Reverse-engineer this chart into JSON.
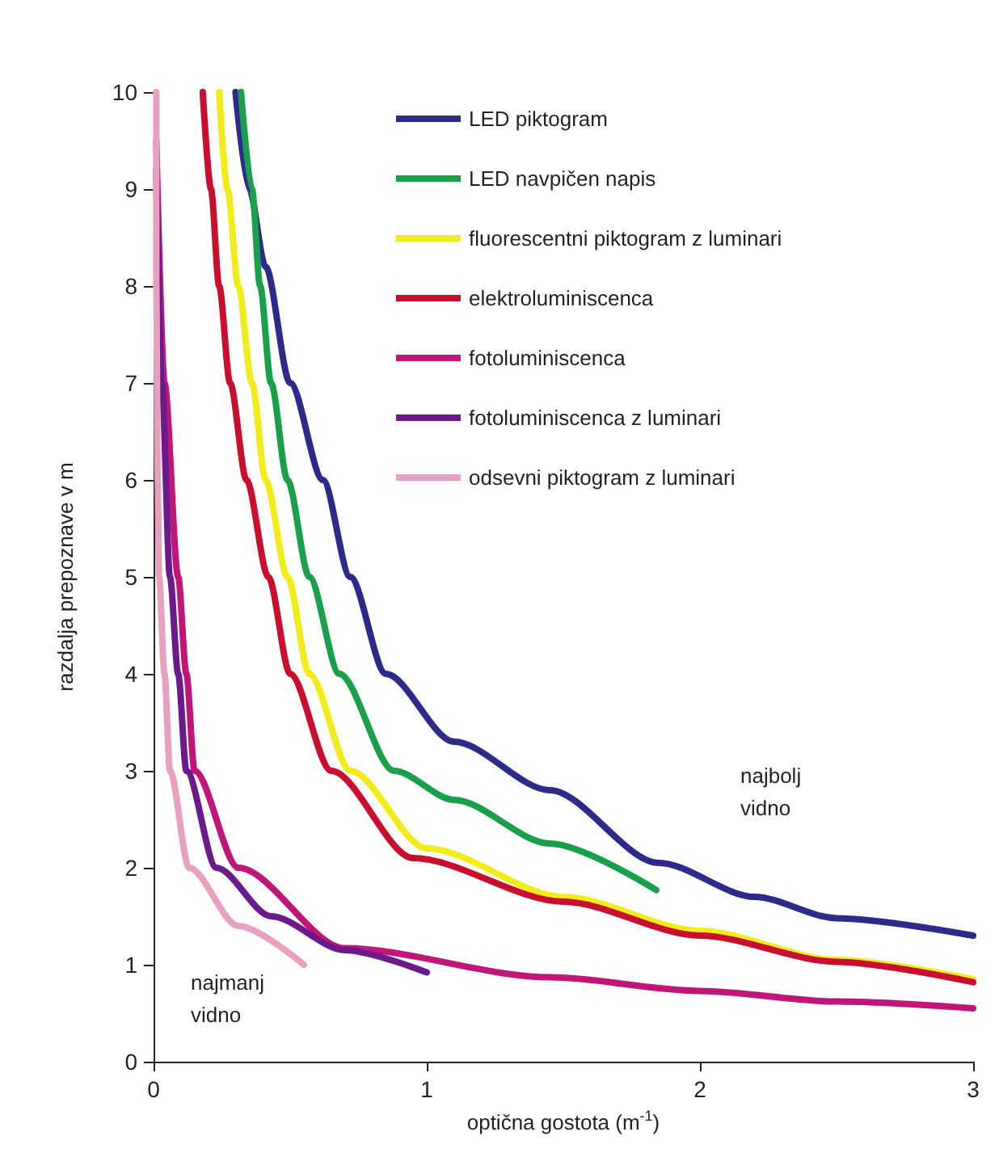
{
  "chart_data": {
    "type": "line",
    "xlabel": "optična gostota (m$^{-1}$)",
    "ylabel": "razdalja prepoznave v m",
    "xlim": [
      0,
      3
    ],
    "xticks": [
      0,
      1,
      2,
      3
    ],
    "ylim": [
      0,
      10
    ],
    "yticks": [
      0,
      1,
      2,
      3,
      4,
      5,
      6,
      7,
      8,
      9,
      10
    ],
    "grid": false,
    "legend": "top right",
    "annotations": [
      "najbolj vidno",
      "najmanj vidno"
    ],
    "series": [
      {
        "name": "LED piktogram",
        "color": "#2e2a8a",
        "x": [
          0.3,
          0.35,
          0.41,
          0.5,
          0.62,
          0.72,
          0.85,
          1.1,
          1.45,
          1.85,
          2.2,
          2.5,
          3.0
        ],
        "values": [
          10,
          9,
          8.2,
          7,
          6,
          5,
          4,
          3.3,
          2.8,
          2.05,
          1.7,
          1.48,
          1.3
        ]
      },
      {
        "name": "LED navpičen napis",
        "color": "#1aa04a",
        "x": [
          0.32,
          0.36,
          0.39,
          0.43,
          0.49,
          0.57,
          0.68,
          0.88,
          1.1,
          1.45,
          1.84
        ],
        "values": [
          10,
          9,
          8,
          7,
          6,
          5,
          4,
          3,
          2.7,
          2.25,
          1.77
        ]
      },
      {
        "name": "fluorescentni piktogram z luminari",
        "color": "#f2ec1a",
        "x": [
          0.24,
          0.27,
          0.31,
          0.36,
          0.41,
          0.49,
          0.57,
          0.72,
          1.0,
          1.5,
          2.0,
          2.5,
          3.0
        ],
        "values": [
          10,
          9,
          8,
          7,
          6,
          5,
          4,
          3,
          2.2,
          1.7,
          1.35,
          1.05,
          0.85
        ]
      },
      {
        "name": "elektroluminiscenca",
        "color": "#c8102e",
        "x": [
          0.18,
          0.21,
          0.24,
          0.28,
          0.34,
          0.42,
          0.5,
          0.65,
          0.95,
          1.5,
          2.0,
          2.5,
          3.0
        ],
        "values": [
          10,
          9,
          8,
          7,
          6,
          5,
          4,
          3,
          2.1,
          1.65,
          1.3,
          1.03,
          0.82
        ]
      },
      {
        "name": "fotoluminiscenca",
        "color": "#c0167a",
        "x": [
          0.01,
          0.04,
          0.09,
          0.12,
          0.15,
          0.31,
          0.7,
          1.45,
          2.0,
          2.5,
          3.0
        ],
        "values": [
          9.5,
          7,
          5,
          4,
          3,
          2,
          1.17,
          0.87,
          0.73,
          0.62,
          0.55
        ]
      },
      {
        "name": "fotoluminiscenca z luminari",
        "color": "#6a1a8a",
        "x": [
          0.01,
          0.03,
          0.06,
          0.09,
          0.12,
          0.23,
          0.43,
          0.7,
          1.0
        ],
        "values": [
          9.2,
          7,
          5,
          4,
          3,
          2,
          1.5,
          1.15,
          0.92
        ]
      },
      {
        "name": "odsevni piktogram z luminari",
        "color": "#e8a0c0",
        "x": [
          0.01,
          0.01,
          0.015,
          0.02,
          0.04,
          0.06,
          0.13,
          0.31,
          0.55
        ],
        "values": [
          10,
          8,
          6,
          5,
          4,
          3,
          2,
          1.4,
          1.0
        ]
      }
    ]
  }
}
